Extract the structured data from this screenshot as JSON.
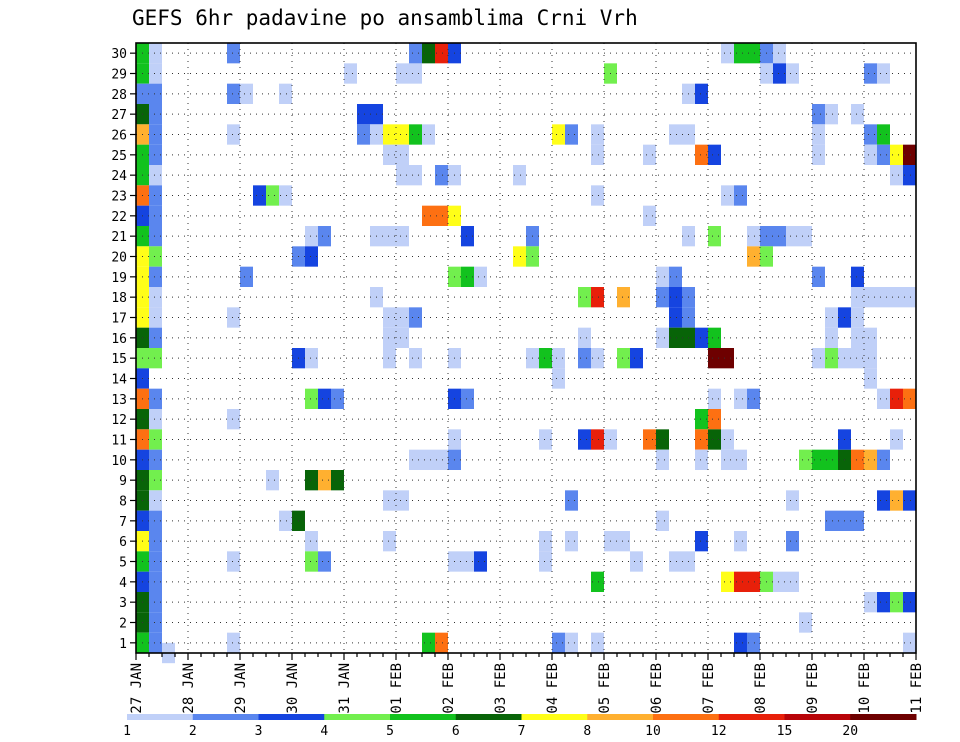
{
  "chart_data": {
    "type": "heatmap",
    "title": "GEFS 6hr padavine po ansamblima Crni Vrh",
    "xlabel": "",
    "ylabel": "",
    "x_ticks": [
      "27 JAN",
      "28 JAN",
      "29 JAN",
      "30 JAN",
      "31 JAN",
      "01 FEB",
      "02 FEB",
      "03 FEB",
      "04 FEB",
      "05 FEB",
      "06 FEB",
      "07 FEB",
      "08 FEB",
      "09 FEB",
      "10 FEB",
      "11 FEB"
    ],
    "x_unit": "6-hour step from 27 JAN 00Z",
    "xlim": [
      0,
      60
    ],
    "y_ticks": [
      1,
      2,
      3,
      4,
      5,
      6,
      7,
      8,
      9,
      10,
      11,
      12,
      13,
      14,
      15,
      16,
      17,
      18,
      19,
      20,
      21,
      22,
      23,
      24,
      25,
      26,
      27,
      28,
      29,
      30
    ],
    "ylim": [
      0.5,
      30.5
    ],
    "colorbar": {
      "labels": [
        "1",
        "2",
        "3",
        "4",
        "5",
        "6",
        "7",
        "8",
        "10",
        "12",
        "15",
        "20"
      ],
      "colors": [
        "#c0d0f8",
        "#5a86ee",
        "#1544e0",
        "#72ef4e",
        "#12c21e",
        "#086408",
        "#fffe18",
        "#ffb030",
        "#fd7012",
        "#e8200a",
        "#b80408",
        "#6e0000"
      ]
    },
    "cells": [
      [
        0,
        30,
        5
      ],
      [
        0,
        29,
        5
      ],
      [
        0,
        28,
        2
      ],
      [
        0,
        27,
        6
      ],
      [
        0,
        26,
        8
      ],
      [
        0,
        25,
        5
      ],
      [
        0,
        24,
        5
      ],
      [
        0,
        23,
        9
      ],
      [
        0,
        22,
        3
      ],
      [
        0,
        21,
        5
      ],
      [
        0,
        20,
        7
      ],
      [
        0,
        19,
        7
      ],
      [
        0,
        18,
        7
      ],
      [
        0,
        17,
        7
      ],
      [
        0,
        16,
        6
      ],
      [
        0,
        15,
        4
      ],
      [
        0,
        14,
        3
      ],
      [
        0,
        13,
        9
      ],
      [
        0,
        12,
        6
      ],
      [
        0,
        11,
        9
      ],
      [
        0,
        10,
        3
      ],
      [
        0,
        9,
        6
      ],
      [
        0,
        8,
        6
      ],
      [
        0,
        7,
        3
      ],
      [
        0,
        6,
        7
      ],
      [
        0,
        5,
        5
      ],
      [
        0,
        4,
        3
      ],
      [
        0,
        3,
        6
      ],
      [
        0,
        2,
        6
      ],
      [
        0,
        1,
        5
      ],
      [
        1,
        30,
        1
      ],
      [
        1,
        29,
        1
      ],
      [
        1,
        28,
        2
      ],
      [
        1,
        27,
        2
      ],
      [
        1,
        26,
        2
      ],
      [
        1,
        25,
        2
      ],
      [
        1,
        24,
        1
      ],
      [
        1,
        23,
        2
      ],
      [
        1,
        22,
        2
      ],
      [
        1,
        21,
        2
      ],
      [
        1,
        20,
        4
      ],
      [
        1,
        19,
        2
      ],
      [
        1,
        18,
        1
      ],
      [
        1,
        17,
        1
      ],
      [
        1,
        16,
        2
      ],
      [
        1,
        15,
        4
      ],
      [
        1,
        13,
        2
      ],
      [
        1,
        12,
        1
      ],
      [
        1,
        11,
        4
      ],
      [
        1,
        10,
        2
      ],
      [
        1,
        9,
        4
      ],
      [
        1,
        8,
        1
      ],
      [
        1,
        7,
        2
      ],
      [
        1,
        6,
        2
      ],
      [
        1,
        5,
        2
      ],
      [
        1,
        4,
        2
      ],
      [
        1,
        3,
        2
      ],
      [
        1,
        2,
        2
      ],
      [
        1,
        1,
        2
      ],
      [
        2,
        0.5,
        1
      ],
      [
        7,
        30,
        2
      ],
      [
        7,
        28,
        2
      ],
      [
        8,
        28,
        1
      ],
      [
        11,
        28,
        1
      ],
      [
        7,
        26,
        1
      ],
      [
        7,
        17,
        1
      ],
      [
        7,
        12,
        1
      ],
      [
        7,
        5,
        1
      ],
      [
        7,
        1,
        1
      ],
      [
        9,
        23,
        3
      ],
      [
        10,
        23,
        4
      ],
      [
        11,
        23,
        1
      ],
      [
        8,
        19,
        2
      ],
      [
        12,
        15,
        3
      ],
      [
        13,
        15,
        1
      ],
      [
        10,
        9,
        1
      ],
      [
        11,
        7,
        1
      ],
      [
        12,
        7,
        6
      ],
      [
        13,
        6,
        1
      ],
      [
        13,
        5,
        4
      ],
      [
        14,
        5,
        2
      ],
      [
        13,
        21,
        1
      ],
      [
        14,
        21,
        2
      ],
      [
        12,
        20,
        2
      ],
      [
        13,
        20,
        3
      ],
      [
        13,
        13,
        4
      ],
      [
        14,
        13,
        3
      ],
      [
        15,
        13,
        2
      ],
      [
        13,
        9,
        6
      ],
      [
        14,
        9,
        8
      ],
      [
        15,
        9,
        6
      ],
      [
        16,
        29,
        1
      ],
      [
        17,
        27,
        3
      ],
      [
        18,
        27,
        3
      ],
      [
        17,
        26,
        2
      ],
      [
        18,
        26,
        1
      ],
      [
        19,
        26,
        7
      ],
      [
        20,
        26,
        7
      ],
      [
        21,
        26,
        5
      ],
      [
        22,
        26,
        1
      ],
      [
        19,
        25,
        1
      ],
      [
        20,
        25,
        1
      ],
      [
        20,
        24,
        1
      ],
      [
        21,
        24,
        1
      ],
      [
        18,
        18,
        1
      ],
      [
        18,
        21,
        1
      ],
      [
        19,
        21,
        1
      ],
      [
        20,
        21,
        1
      ],
      [
        19,
        17,
        1
      ],
      [
        20,
        17,
        1
      ],
      [
        21,
        17,
        2
      ],
      [
        19,
        16,
        1
      ],
      [
        20,
        16,
        1
      ],
      [
        19,
        15,
        1
      ],
      [
        21,
        15,
        1
      ],
      [
        19,
        8,
        1
      ],
      [
        20,
        8,
        1
      ],
      [
        19,
        6,
        1
      ],
      [
        20,
        29,
        1
      ],
      [
        21,
        29,
        1
      ],
      [
        21,
        30,
        2
      ],
      [
        22,
        30,
        6
      ],
      [
        23,
        30,
        10
      ],
      [
        24,
        30,
        3
      ],
      [
        22,
        22,
        9
      ],
      [
        23,
        22,
        9
      ],
      [
        24,
        22,
        7
      ],
      [
        23,
        24,
        2
      ],
      [
        24,
        24,
        1
      ],
      [
        25,
        21,
        3
      ],
      [
        24,
        19,
        4
      ],
      [
        25,
        19,
        5
      ],
      [
        26,
        19,
        1
      ],
      [
        24,
        15,
        1
      ],
      [
        24,
        13,
        3
      ],
      [
        25,
        13,
        2
      ],
      [
        24,
        11,
        1
      ],
      [
        21,
        10,
        1
      ],
      [
        22,
        10,
        1
      ],
      [
        23,
        10,
        1
      ],
      [
        24,
        10,
        2
      ],
      [
        22,
        1,
        5
      ],
      [
        23,
        1,
        9
      ],
      [
        24,
        5,
        1
      ],
      [
        25,
        5,
        1
      ],
      [
        26,
        5,
        3
      ],
      [
        29,
        24,
        1
      ],
      [
        30,
        21,
        2
      ],
      [
        29,
        20,
        7
      ],
      [
        30,
        20,
        4
      ],
      [
        30,
        15,
        1
      ],
      [
        31,
        15,
        5
      ],
      [
        32,
        15,
        1
      ],
      [
        32,
        14,
        1
      ],
      [
        32,
        26,
        7
      ],
      [
        33,
        26,
        2
      ],
      [
        35,
        26,
        1
      ],
      [
        31,
        11,
        1
      ],
      [
        31,
        6,
        1
      ],
      [
        31,
        5,
        1
      ],
      [
        33,
        8,
        2
      ],
      [
        33,
        6,
        1
      ],
      [
        32,
        1,
        2
      ],
      [
        33,
        1,
        1
      ],
      [
        35,
        1,
        1
      ],
      [
        34,
        15,
        2
      ],
      [
        35,
        15,
        1
      ],
      [
        35,
        25,
        1
      ],
      [
        35,
        23,
        1
      ],
      [
        34,
        18,
        4
      ],
      [
        35,
        18,
        10
      ],
      [
        34,
        16,
        1
      ],
      [
        37,
        18,
        8
      ],
      [
        34,
        11,
        3
      ],
      [
        35,
        11,
        10
      ],
      [
        36,
        11,
        1
      ],
      [
        35,
        4,
        5
      ],
      [
        36,
        29,
        4
      ],
      [
        36,
        6,
        1
      ],
      [
        37,
        6,
        1
      ],
      [
        37,
        15,
        4
      ],
      [
        38,
        15,
        3
      ],
      [
        38,
        5,
        1
      ],
      [
        39,
        25,
        1
      ],
      [
        39,
        22,
        1
      ],
      [
        39,
        11,
        9
      ],
      [
        40,
        11,
        6
      ],
      [
        40,
        16,
        1
      ],
      [
        40,
        10,
        1
      ],
      [
        40,
        7,
        1
      ],
      [
        40,
        19,
        1
      ],
      [
        41,
        19,
        2
      ],
      [
        40,
        18,
        2
      ],
      [
        41,
        18,
        3
      ],
      [
        42,
        18,
        2
      ],
      [
        41,
        17,
        3
      ],
      [
        42,
        17,
        2
      ],
      [
        41,
        16,
        6
      ],
      [
        42,
        16,
        6
      ],
      [
        43,
        16,
        3
      ],
      [
        44,
        16,
        5
      ],
      [
        41,
        5,
        1
      ],
      [
        42,
        5,
        1
      ],
      [
        43,
        6,
        3
      ],
      [
        42,
        28,
        1
      ],
      [
        43,
        28,
        3
      ],
      [
        41,
        26,
        1
      ],
      [
        42,
        26,
        1
      ],
      [
        43,
        25,
        9
      ],
      [
        44,
        25,
        3
      ],
      [
        42,
        21,
        1
      ],
      [
        44,
        21,
        4
      ],
      [
        43,
        12,
        5
      ],
      [
        44,
        12,
        9
      ],
      [
        43,
        11,
        9
      ],
      [
        44,
        11,
        6
      ],
      [
        45,
        11,
        1
      ],
      [
        44,
        13,
        1
      ],
      [
        43,
        10,
        1
      ],
      [
        45,
        4,
        7
      ],
      [
        46,
        4,
        10
      ],
      [
        47,
        4,
        10
      ],
      [
        48,
        4,
        4
      ],
      [
        49,
        4,
        1
      ],
      [
        50,
        4,
        1
      ],
      [
        44,
        15,
        12
      ],
      [
        45,
        15,
        12
      ],
      [
        45,
        23,
        1
      ],
      [
        46,
        23,
        2
      ],
      [
        46,
        13,
        1
      ],
      [
        47,
        13,
        2
      ],
      [
        45,
        10,
        1
      ],
      [
        46,
        10,
        1
      ],
      [
        46,
        6,
        1
      ],
      [
        46,
        1,
        3
      ],
      [
        47,
        1,
        2
      ],
      [
        45,
        30,
        1
      ],
      [
        46,
        30,
        5
      ],
      [
        47,
        30,
        5
      ],
      [
        48,
        30,
        2
      ],
      [
        49,
        30,
        1
      ],
      [
        48,
        29,
        1
      ],
      [
        49,
        29,
        3
      ],
      [
        50,
        29,
        1
      ],
      [
        47,
        21,
        1
      ],
      [
        48,
        21,
        2
      ],
      [
        49,
        21,
        2
      ],
      [
        50,
        21,
        1
      ],
      [
        51,
        21,
        1
      ],
      [
        47,
        20,
        8
      ],
      [
        48,
        20,
        4
      ],
      [
        50,
        8,
        1
      ],
      [
        50,
        6,
        2
      ],
      [
        52,
        27,
        2
      ],
      [
        53,
        27,
        1
      ],
      [
        55,
        27,
        1
      ],
      [
        52,
        26,
        1
      ],
      [
        52,
        25,
        1
      ],
      [
        51,
        2,
        1
      ],
      [
        51,
        10,
        4
      ],
      [
        52,
        10,
        5
      ],
      [
        53,
        10,
        5
      ],
      [
        54,
        10,
        6
      ],
      [
        55,
        10,
        9
      ],
      [
        56,
        10,
        8
      ],
      [
        57,
        10,
        2
      ],
      [
        52,
        15,
        1
      ],
      [
        53,
        15,
        4
      ],
      [
        54,
        15,
        1
      ],
      [
        55,
        15,
        1
      ],
      [
        56,
        15,
        1
      ],
      [
        53,
        16,
        1
      ],
      [
        55,
        16,
        1
      ],
      [
        56,
        16,
        1
      ],
      [
        53,
        17,
        1
      ],
      [
        54,
        17,
        3
      ],
      [
        55,
        17,
        1
      ],
      [
        52,
        19,
        2
      ],
      [
        55,
        19,
        3
      ],
      [
        54,
        11,
        3
      ],
      [
        53,
        7,
        2
      ],
      [
        54,
        7,
        2
      ],
      [
        55,
        7,
        2
      ],
      [
        56,
        26,
        2
      ],
      [
        57,
        26,
        5
      ],
      [
        56,
        25,
        1
      ],
      [
        57,
        25,
        2
      ],
      [
        58,
        25,
        7
      ],
      [
        59,
        25,
        12
      ],
      [
        60,
        25,
        9
      ],
      [
        58,
        24,
        1
      ],
      [
        59,
        24,
        3
      ],
      [
        55,
        18,
        1
      ],
      [
        56,
        18,
        1
      ],
      [
        57,
        18,
        1
      ],
      [
        58,
        18,
        1
      ],
      [
        59,
        18,
        1
      ],
      [
        56,
        29,
        2
      ],
      [
        57,
        29,
        1
      ],
      [
        56,
        14,
        1
      ],
      [
        57,
        13,
        1
      ],
      [
        58,
        13,
        10
      ],
      [
        59,
        13,
        9
      ],
      [
        58,
        11,
        1
      ],
      [
        56,
        3,
        1
      ],
      [
        57,
        3,
        3
      ],
      [
        58,
        3,
        4
      ],
      [
        59,
        3,
        3
      ],
      [
        57,
        8,
        3
      ],
      [
        58,
        8,
        8
      ],
      [
        59,
        8,
        3
      ],
      [
        59,
        1,
        1
      ]
    ]
  }
}
